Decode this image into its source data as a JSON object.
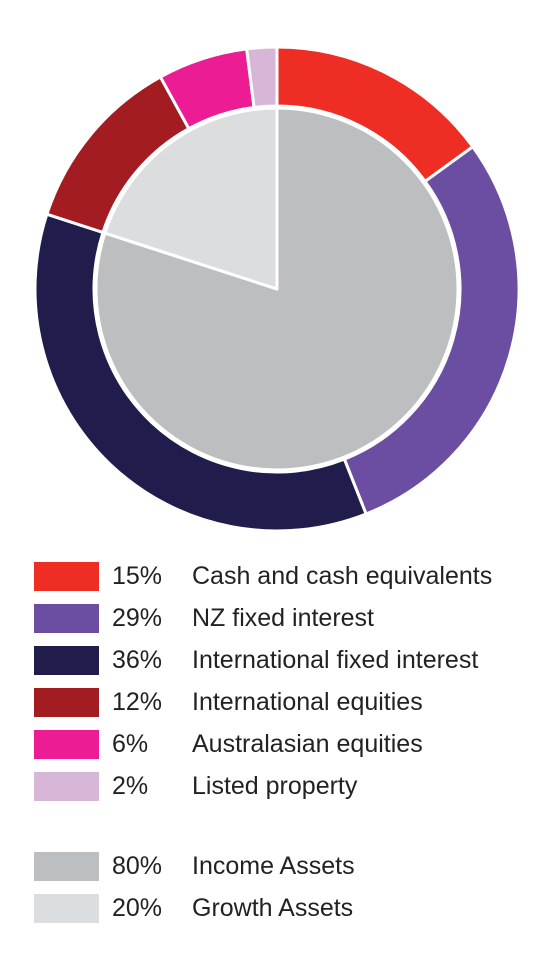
{
  "chart_data": [
    {
      "type": "pie",
      "ring": "outer",
      "slices": [
        {
          "label": "Cash and cash equivalents",
          "value": 15,
          "value_label": "15%",
          "color": "#ee2d24"
        },
        {
          "label": "NZ fixed interest",
          "value": 29,
          "value_label": "29%",
          "color": "#6b4ea2"
        },
        {
          "label": "International fixed interest",
          "value": 36,
          "value_label": "36%",
          "color": "#201d4d"
        },
        {
          "label": "International equities",
          "value": 12,
          "value_label": "12%",
          "color": "#a21c22"
        },
        {
          "label": "Australasian equities",
          "value": 6,
          "value_label": "6%",
          "color": "#ec1c94"
        },
        {
          "label": "Listed property",
          "value": 2,
          "value_label": "2%",
          "color": "#d7b6d8"
        }
      ]
    },
    {
      "type": "pie",
      "ring": "inner",
      "slices": [
        {
          "label": "Income Assets",
          "value": 80,
          "value_label": "80%",
          "color": "#bdbebf"
        },
        {
          "label": "Growth Assets",
          "value": 20,
          "value_label": "20%",
          "color": "#dcdddf"
        }
      ]
    }
  ]
}
